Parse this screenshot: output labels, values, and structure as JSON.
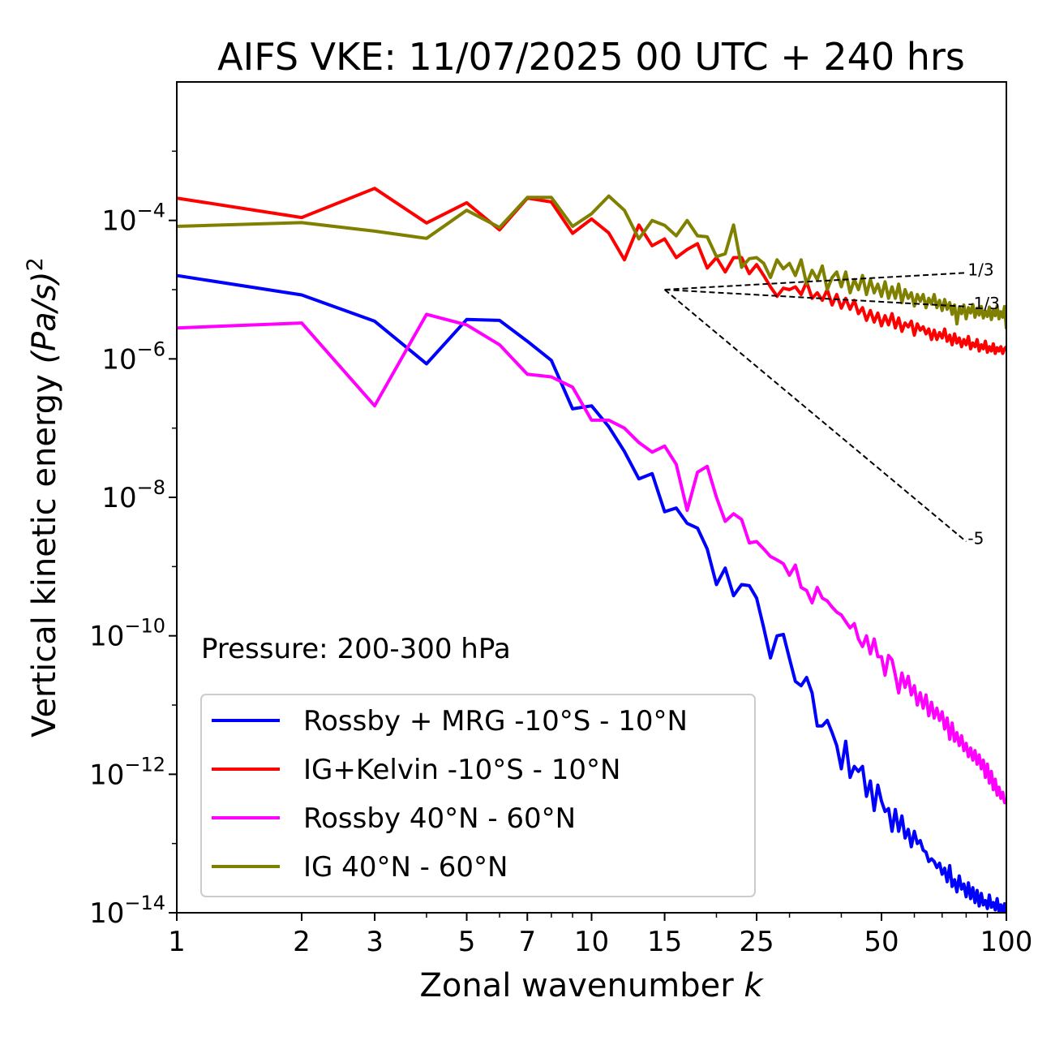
{
  "chart_data": {
    "type": "line",
    "title": "AIFS VKE: 11/07/2025 00 UTC + 240 hrs",
    "xlabel": "Zonal wavenumber",
    "xlabel_var": "k",
    "ylabel": "Vertical kinetic energy",
    "ylabel_unit": "(Pa/s)",
    "ylabel_unit_exp": "2",
    "annotation": "Pressure: 200-300 hPa",
    "x_scale": "log",
    "y_scale": "log",
    "xlim": [
      1,
      100
    ],
    "ylim": [
      1e-14,
      0.01
    ],
    "x_ticks": [
      1,
      2,
      3,
      5,
      7,
      10,
      15,
      25,
      50,
      100
    ],
    "y_ticks": [
      {
        "base": "10",
        "exp": "−14",
        "value": 1e-14
      },
      {
        "base": "10",
        "exp": "−12",
        "value": 1e-12
      },
      {
        "base": "10",
        "exp": "−10",
        "value": 1e-10
      },
      {
        "base": "10",
        "exp": "−8",
        "value": 1e-08
      },
      {
        "base": "10",
        "exp": "−6",
        "value": 1e-06
      },
      {
        "base": "10",
        "exp": "−4",
        "value": 0.0001
      }
    ],
    "legend_position": "lower-left",
    "series": [
      {
        "name": "Rossby + MRG -10°S - 10°N",
        "color": "#0000ff",
        "x": [
          1,
          2,
          3,
          4,
          5,
          6,
          7,
          8,
          9,
          10,
          11,
          12,
          13,
          14,
          15,
          16,
          17,
          18,
          19,
          20,
          21,
          22,
          23,
          24,
          25,
          26,
          27,
          28,
          29,
          30,
          31,
          32,
          33,
          34,
          35,
          36,
          37,
          38,
          39,
          40,
          41,
          42,
          43,
          44,
          45,
          46,
          47,
          48,
          49,
          50,
          51,
          52,
          53,
          54,
          55,
          56,
          57,
          58,
          59,
          60,
          61,
          62,
          63,
          64,
          65,
          66,
          67,
          68,
          69,
          70,
          71,
          72,
          73,
          74,
          75,
          76,
          77,
          78,
          79,
          80,
          81,
          82,
          83,
          84,
          85,
          86,
          87,
          88,
          89,
          90,
          91,
          92,
          93,
          94,
          95,
          96,
          97,
          98,
          99,
          100
        ],
        "y": [
          1.6e-05,
          8.4e-06,
          3.5e-06,
          8.5e-07,
          3.7e-06,
          3.6e-06,
          1.8e-06,
          9.5e-07,
          1.9e-07,
          2.1e-07,
          1.05e-07,
          4.6e-08,
          1.85e-08,
          2.2e-08,
          6.2e-09,
          7e-09,
          4.2e-09,
          3.6e-09,
          1.8e-09,
          5.5e-10,
          9.5e-10,
          3.8e-10,
          5.5e-10,
          5.3e-10,
          3.5e-10,
          1.3e-10,
          4.8e-11,
          1e-10,
          1.05e-10,
          4.7e-11,
          2.2e-11,
          1.9e-11,
          2.5e-11,
          1.5e-11,
          5e-12,
          5e-12,
          6e-12,
          4e-12,
          2.6e-12,
          1.2e-12,
          3e-12,
          9e-13,
          1.3e-12,
          1.1e-12,
          1.3e-12,
          4.8e-13,
          8e-13,
          3e-13,
          7e-13,
          4.1e-13,
          2.9e-13,
          3.2e-13,
          1.5e-13,
          3.1e-13,
          1.5e-13,
          2.5e-13,
          1.2e-13,
          1.6e-13,
          9e-14,
          1.5e-13,
          1e-13,
          1.1e-13,
          8e-14,
          7.5e-14,
          5.5e-14,
          6e-14,
          5.5e-14,
          4.5e-14,
          5.2e-14,
          3.6e-14,
          4.4e-14,
          2.8e-14,
          4.8e-14,
          2.4e-14,
          3e-14,
          2e-14,
          3.4e-14,
          2.2e-14,
          2.6e-14,
          1.7e-14,
          2.7e-14,
          1.6e-14,
          2.3e-14,
          1.4e-14,
          2.1e-14,
          1.25e-14,
          1.9e-14,
          1.3e-14,
          1.5e-14,
          1.15e-14,
          1.8e-14,
          1.2e-14,
          1.4e-14,
          1.1e-14,
          1.6e-14,
          1.05e-14,
          1.3e-14,
          1e-14,
          1.35e-14,
          1e-14
        ]
      },
      {
        "name": "IG+Kelvin -10°S - 10°N",
        "color": "#ff0000",
        "x": [
          1,
          2,
          3,
          4,
          5,
          6,
          7,
          8,
          9,
          10,
          11,
          12,
          13,
          14,
          15,
          16,
          17,
          18,
          19,
          20,
          21,
          22,
          23,
          24,
          25,
          26,
          27,
          28,
          29,
          30,
          31,
          32,
          33,
          34,
          35,
          36,
          37,
          38,
          39,
          40,
          41,
          42,
          43,
          44,
          45,
          46,
          47,
          48,
          49,
          50,
          51,
          52,
          53,
          54,
          55,
          56,
          57,
          58,
          59,
          60,
          61,
          62,
          63,
          64,
          65,
          66,
          67,
          68,
          69,
          70,
          71,
          72,
          73,
          74,
          75,
          76,
          77,
          78,
          79,
          80,
          81,
          82,
          83,
          84,
          85,
          86,
          87,
          88,
          89,
          90,
          91,
          92,
          93,
          94,
          95,
          96,
          97,
          98,
          99,
          100
        ],
        "y": [
          0.00021,
          0.00011,
          0.00029,
          9.2e-05,
          0.00018,
          7.3e-05,
          0.00021,
          0.000185,
          6.5e-05,
          0.000105,
          6.6e-05,
          2.7e-05,
          8.6e-05,
          4.3e-05,
          5.4e-05,
          2.9e-05,
          3.8e-05,
          4.6e-05,
          2.05e-05,
          2.9e-05,
          1.8e-05,
          2.9e-05,
          2.9e-05,
          1.7e-05,
          2.3e-05,
          1.6e-05,
          1.1e-05,
          8e-06,
          1.05e-05,
          1e-05,
          1.1e-05,
          8.5e-06,
          1.3e-05,
          7.5e-06,
          9e-06,
          7e-06,
          1e-05,
          6e-06,
          8.5e-06,
          5.4e-06,
          7.5e-06,
          5.2e-06,
          7e-06,
          4.5e-06,
          5.5e-06,
          3.6e-06,
          5e-06,
          3.4e-06,
          4.6e-06,
          3e-06,
          4.2e-06,
          3.1e-06,
          4.5e-06,
          2.8e-06,
          3.9e-06,
          2.5e-06,
          3.3e-06,
          2.9e-06,
          3.5e-06,
          2.2e-06,
          3.2e-06,
          2.6e-06,
          2.9e-06,
          2.3e-06,
          2.7e-06,
          1.9e-06,
          2.6e-06,
          1.9e-06,
          2.4e-06,
          2e-06,
          2.7e-06,
          1.8e-06,
          2.2e-06,
          1.6e-06,
          2.3e-06,
          1.7e-06,
          2e-06,
          1.5e-06,
          1.9e-06,
          1.6e-06,
          2.1e-06,
          1.4e-06,
          1.7e-06,
          1.5e-06,
          1.9e-06,
          1.3e-06,
          1.6e-06,
          1.4e-06,
          1.8e-06,
          1.25e-06,
          1.5e-06,
          1.3e-06,
          1.65e-06,
          1.2e-06,
          1.45e-06,
          1.3e-06,
          1.5e-06,
          1.2e-06,
          1.4e-06,
          1.5e-06
        ]
      },
      {
        "name": "Rossby 40°N - 60°N",
        "color": "#ff00ff",
        "x": [
          1,
          2,
          3,
          4,
          5,
          6,
          7,
          8,
          9,
          10,
          11,
          12,
          13,
          14,
          15,
          16,
          17,
          18,
          19,
          20,
          21,
          22,
          23,
          24,
          25,
          26,
          27,
          28,
          29,
          30,
          31,
          32,
          33,
          34,
          35,
          36,
          37,
          38,
          39,
          40,
          41,
          42,
          43,
          44,
          45,
          46,
          47,
          48,
          49,
          50,
          51,
          52,
          53,
          54,
          55,
          56,
          57,
          58,
          59,
          60,
          61,
          62,
          63,
          64,
          65,
          66,
          67,
          68,
          69,
          70,
          71,
          72,
          73,
          74,
          75,
          76,
          77,
          78,
          79,
          80,
          81,
          82,
          83,
          84,
          85,
          86,
          87,
          88,
          89,
          90,
          91,
          92,
          93,
          94,
          95,
          96,
          97,
          98,
          99,
          100
        ],
        "y": [
          2.8e-06,
          3.3e-06,
          2.1e-07,
          4.4e-06,
          3.1e-06,
          1.6e-06,
          6e-07,
          5.5e-07,
          3.9e-07,
          1.3e-07,
          1.3e-07,
          1e-07,
          6.2e-08,
          4.5e-08,
          5.5e-08,
          3e-08,
          6.5e-09,
          2.3e-08,
          2.8e-08,
          1e-08,
          4.5e-09,
          5.8e-09,
          4.8e-09,
          2.2e-09,
          2.3e-09,
          1.8e-09,
          1.4e-09,
          1.25e-09,
          1.1e-09,
          7.5e-10,
          1.05e-09,
          5e-10,
          4.5e-10,
          3e-10,
          5e-10,
          3.5e-10,
          3.2e-10,
          2.6e-10,
          2.2e-10,
          2e-10,
          1.6e-10,
          1.3e-10,
          1.5e-10,
          9e-11,
          7e-11,
          1e-10,
          5.5e-11,
          9e-11,
          5e-11,
          5e-11,
          2.7e-11,
          5.2e-11,
          4.5e-11,
          2.7e-11,
          1.5e-11,
          2.9e-11,
          1.8e-11,
          2.6e-11,
          1.4e-11,
          1.9e-11,
          1e-11,
          1.5e-11,
          9e-12,
          1.4e-11,
          7e-12,
          1.1e-11,
          6.5e-12,
          9e-12,
          6e-12,
          8e-12,
          4.5e-12,
          6.5e-12,
          3.2e-12,
          5.5e-12,
          3e-12,
          4e-12,
          2.6e-12,
          3.6e-12,
          2.2e-12,
          2.8e-12,
          1.8e-12,
          2.4e-12,
          1.6e-12,
          2.2e-12,
          1.4e-12,
          1.9e-12,
          1.2e-12,
          1.6e-12,
          9e-13,
          1.4e-12,
          7.5e-13,
          1.1e-12,
          6e-13,
          8.5e-13,
          5e-13,
          6.5e-13,
          4.5e-13,
          5.5e-13,
          3.9e-13,
          3.9e-13
        ]
      },
      {
        "name": "IG 40°N - 60°N",
        "color": "#808000",
        "x": [
          1,
          2,
          3,
          4,
          5,
          6,
          7,
          8,
          9,
          10,
          11,
          12,
          13,
          14,
          15,
          16,
          17,
          18,
          19,
          20,
          21,
          22,
          23,
          24,
          25,
          26,
          27,
          28,
          29,
          30,
          31,
          32,
          33,
          34,
          35,
          36,
          37,
          38,
          39,
          40,
          41,
          42,
          43,
          44,
          45,
          46,
          47,
          48,
          49,
          50,
          51,
          52,
          53,
          54,
          55,
          56,
          57,
          58,
          59,
          60,
          61,
          62,
          63,
          64,
          65,
          66,
          67,
          68,
          69,
          70,
          71,
          72,
          73,
          74,
          75,
          76,
          77,
          78,
          79,
          80,
          81,
          82,
          83,
          84,
          85,
          86,
          87,
          88,
          89,
          90,
          91,
          92,
          93,
          94,
          95,
          96,
          97,
          98,
          99,
          100
        ],
        "y": [
          8.2e-05,
          9.3e-05,
          7e-05,
          5.5e-05,
          0.00014,
          7.9e-05,
          0.000215,
          0.000215,
          8.2e-05,
          0.000125,
          0.000225,
          0.00014,
          5.4e-05,
          0.0001,
          8.5e-05,
          6e-05,
          0.0001,
          6e-05,
          5.8e-05,
          3e-05,
          3.3e-05,
          8.6e-05,
          2.1e-05,
          2.8e-05,
          2.9e-05,
          2.4e-05,
          1.5e-05,
          2.7e-05,
          2e-05,
          2.4e-05,
          1.6e-05,
          2.7e-05,
          1.2e-05,
          1.9e-05,
          1.4e-05,
          2.2e-05,
          1e-05,
          1.5e-05,
          1.8e-05,
          1.1e-05,
          1.8e-05,
          9e-06,
          1.4e-05,
          1e-05,
          1.6e-05,
          8.5e-06,
          1.4e-05,
          9e-06,
          1.2e-05,
          8e-06,
          1.3e-05,
          7.5e-06,
          1.1e-05,
          7.5e-06,
          1.2e-05,
          6.5e-06,
          1e-05,
          7.5e-06,
          9e-06,
          5.8e-06,
          8.5e-06,
          6.8e-06,
          8.5e-06,
          5.5e-06,
          7.5e-06,
          6.2e-06,
          8.5e-06,
          5.5e-06,
          7e-06,
          5e-06,
          7.2e-06,
          5.2e-06,
          6.5e-06,
          4.4e-06,
          6e-06,
          3.2e-06,
          5.5e-06,
          4.5e-06,
          6e-06,
          3.8e-06,
          5.5e-06,
          4.6e-06,
          6.1e-06,
          4e-06,
          5.4e-06,
          4.3e-06,
          5.7e-06,
          3.9e-06,
          4.9e-06,
          4.1e-06,
          5.6e-06,
          3.7e-06,
          5e-06,
          4.2e-06,
          5.8e-06,
          3.8e-06,
          4.8e-06,
          4e-06,
          5.7e-06,
          2.7e-06
        ]
      }
    ],
    "reference_lines": [
      {
        "label": "1/3",
        "x0": 15,
        "y0": 1e-05,
        "x1": 80,
        "y1": 1.75e-05,
        "style": "dashed",
        "color": "#000000"
      },
      {
        "label": "-1/3",
        "x0": 15,
        "y0": 1e-05,
        "x1": 80,
        "y1": 5.7e-06,
        "style": "dashed",
        "color": "#000000"
      },
      {
        "label": "-5",
        "x0": 15,
        "y0": 1e-05,
        "x1": 80,
        "y1": 2.3e-09,
        "style": "dashed",
        "color": "#000000"
      }
    ]
  }
}
